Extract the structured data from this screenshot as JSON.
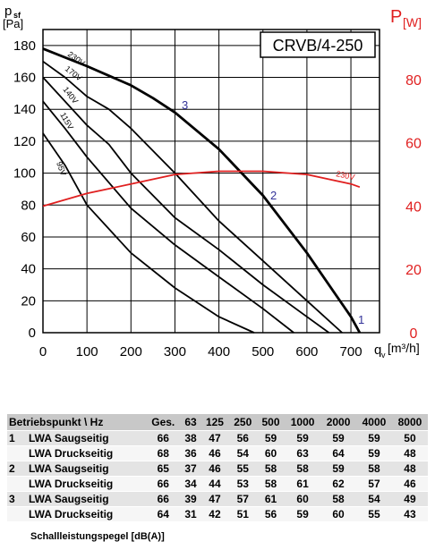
{
  "chart_data": {
    "type": "line",
    "title": "CRVB/4-250",
    "ylabel": "p",
    "ylabel_sub": "sf",
    "ylabel_unit": "[Pa]",
    "xlabel": "q",
    "xlabel_sub": "v",
    "xlabel_unit": "[m³/h]",
    "y2label": "P",
    "y2label_unit": "[W]",
    "xlim": [
      0,
      765
    ],
    "xticks": [
      0,
      100,
      200,
      300,
      400,
      500,
      600,
      700
    ],
    "ylim": [
      0,
      190
    ],
    "yticks": [
      0,
      20,
      40,
      60,
      80,
      100,
      120,
      140,
      160,
      180
    ],
    "y2lim": [
      0,
      95.8
    ],
    "y2ticks": [
      0,
      20,
      40,
      60,
      80
    ],
    "grid": true,
    "series": [
      {
        "name": "230V",
        "color": "#000000",
        "x": [
          0,
          100,
          200,
          250,
          300,
          400,
          500,
          600,
          700,
          720
        ],
        "values": [
          178,
          167,
          155,
          147,
          138,
          115,
          86,
          50,
          10,
          0
        ]
      },
      {
        "name": "170V",
        "color": "#000000",
        "x": [
          0,
          50,
          100,
          150,
          200,
          300,
          400,
          500,
          600,
          680
        ],
        "values": [
          170,
          160,
          148,
          140,
          128,
          100,
          70,
          45,
          20,
          0
        ]
      },
      {
        "name": "140V",
        "color": "#000000",
        "x": [
          0,
          100,
          150,
          200,
          300,
          400,
          500,
          600,
          650
        ],
        "values": [
          160,
          130,
          118,
          100,
          72,
          52,
          30,
          10,
          0
        ]
      },
      {
        "name": "115V",
        "color": "#000000",
        "x": [
          0,
          50,
          100,
          200,
          300,
          400,
          500,
          570
        ],
        "values": [
          145,
          128,
          110,
          78,
          55,
          35,
          15,
          0
        ]
      },
      {
        "name": "95V",
        "color": "#000000",
        "x": [
          0,
          50,
          100,
          200,
          300,
          400,
          480
        ],
        "values": [
          125,
          105,
          80,
          50,
          28,
          10,
          0
        ]
      },
      {
        "name": "230V",
        "color": "#e02020",
        "axis": "y2",
        "x": [
          0,
          100,
          200,
          300,
          400,
          500,
          600,
          700,
          720
        ],
        "values": [
          40,
          44,
          47,
          50,
          51,
          51,
          50,
          47,
          46
        ]
      }
    ],
    "annotations": [
      "1",
      "2",
      "3"
    ]
  },
  "table": {
    "header": [
      "Betriebspunkt \\ Hz",
      "Ges.",
      "63",
      "125",
      "250",
      "500",
      "1000",
      "2000",
      "4000",
      "8000"
    ],
    "rows": [
      [
        "1",
        "LWA Saugseitig",
        66,
        38,
        47,
        56,
        59,
        59,
        59,
        59,
        50
      ],
      [
        null,
        "LWA Druckseitig",
        68,
        36,
        46,
        54,
        60,
        63,
        64,
        59,
        48
      ],
      [
        "2",
        "LWA Saugseitig",
        65,
        37,
        46,
        55,
        58,
        58,
        59,
        58,
        48
      ],
      [
        null,
        "LWA Druckseitig",
        66,
        34,
        44,
        53,
        58,
        61,
        62,
        57,
        46
      ],
      [
        "3",
        "LWA Saugseitig",
        66,
        39,
        47,
        57,
        61,
        60,
        58,
        54,
        49
      ],
      [
        null,
        "LWA Druckseitig",
        64,
        31,
        42,
        51,
        56,
        59,
        60,
        55,
        43
      ]
    ],
    "footer": "Schallleistungspegel [dB(A)]"
  }
}
